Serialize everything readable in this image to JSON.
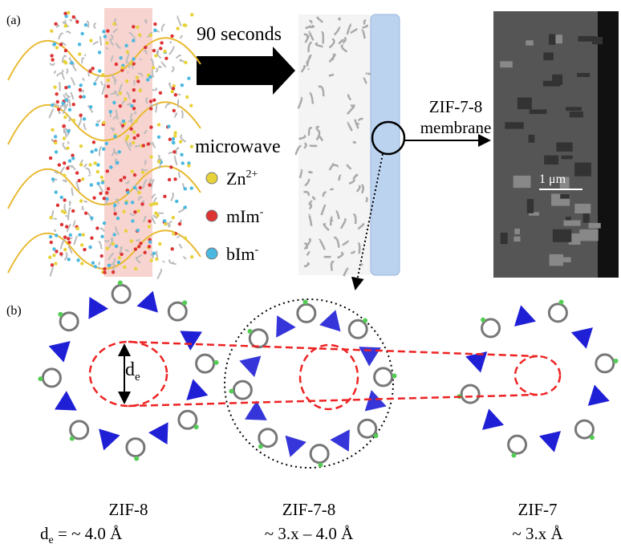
{
  "panel_a": {
    "label": "(a)",
    "step": "90 seconds",
    "membrane_label": [
      "ZIF-7-8",
      "membrane"
    ],
    "microwave": "microwave",
    "legend": [
      {
        "base": "Zn",
        "sup": "2+"
      },
      {
        "base": "mIm",
        "sup": "-"
      },
      {
        "base": "bIm",
        "sup": "-"
      }
    ],
    "scale_bar": "1 μm"
  },
  "panel_b": {
    "label": "(b)",
    "diameter": {
      "base": "d",
      "sub": "e"
    },
    "structures": [
      {
        "name": "ZIF-8",
        "prefix": {
          "base": "d",
          "sub": "e",
          "rest": " = "
        },
        "size": "~ 4.0 Å"
      },
      {
        "name": "ZIF-7-8",
        "size": "~ 3.x – 4.0 Å"
      },
      {
        "name": "ZIF-7",
        "size": "~ 3.x Å"
      }
    ]
  }
}
